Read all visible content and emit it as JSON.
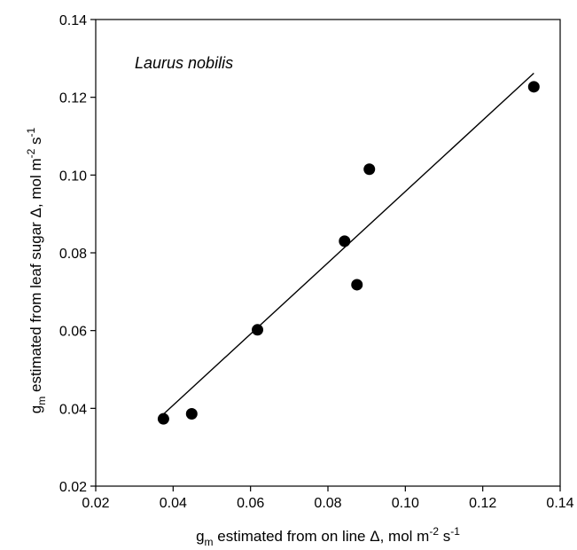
{
  "chart_data": {
    "type": "scatter",
    "annotation": "Laurus nobilis",
    "xlabel": {
      "parts": [
        {
          "text": "g"
        },
        {
          "text": "m",
          "sub": true
        },
        {
          "text": " estimated from on line Δ, mol m"
        },
        {
          "text": "-2",
          "sup": true
        },
        {
          "text": " s"
        },
        {
          "text": "-1",
          "sup": true
        }
      ]
    },
    "ylabel": {
      "parts": [
        {
          "text": "g"
        },
        {
          "text": "m",
          "sub": true
        },
        {
          "text": " estimated from leaf sugar Δ, mol m"
        },
        {
          "text": "-2",
          "sup": true
        },
        {
          "text": " s"
        },
        {
          "text": "-1",
          "sup": true
        }
      ]
    },
    "xlim": [
      0.02,
      0.14
    ],
    "ylim": [
      0.02,
      0.14
    ],
    "xticks": [
      "0.02",
      "0.04",
      "0.06",
      "0.08",
      "0.10",
      "0.12",
      "0.14"
    ],
    "yticks": [
      "0.02",
      "0.04",
      "0.06",
      "0.08",
      "0.10",
      "0.12",
      "0.14"
    ],
    "grid": false,
    "points": [
      {
        "x": 0.0375,
        "y": 0.0373
      },
      {
        "x": 0.0448,
        "y": 0.0386
      },
      {
        "x": 0.0618,
        "y": 0.0602
      },
      {
        "x": 0.0843,
        "y": 0.083
      },
      {
        "x": 0.0875,
        "y": 0.0718
      },
      {
        "x": 0.0907,
        "y": 0.1015
      },
      {
        "x": 0.1332,
        "y": 0.1227
      }
    ],
    "fit_line": {
      "x1": 0.0375,
      "y1": 0.0385,
      "x2": 0.1332,
      "y2": 0.1262
    },
    "colors": {
      "marker": "#000000",
      "line": "#000000",
      "axis": "#000000"
    }
  }
}
